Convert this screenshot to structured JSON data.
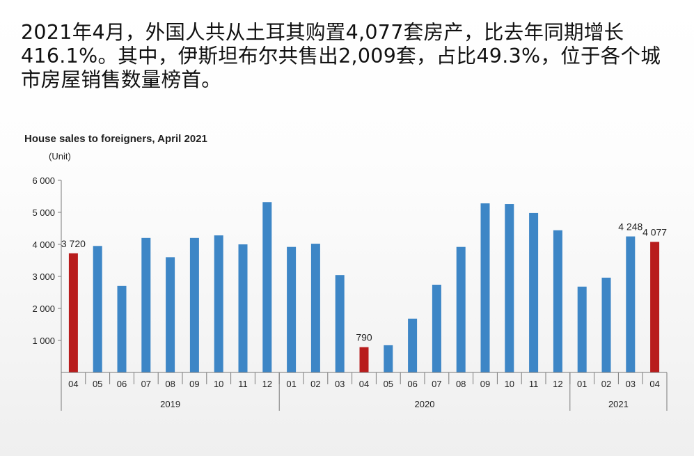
{
  "headline": "2021年4月，外国人共从土耳其购置4,077套房产，比去年同期增长416.1%。其中，伊斯坦布尔共售出2,009套，占比49.3%，位于各个城市房屋销售数量榜首。",
  "colors": {
    "normal": "#3d86c6",
    "highlight": "#b81c1c",
    "axis": "#7a7a7a"
  },
  "chart_data": {
    "type": "bar",
    "title": "House sales to foreigners, April 2021",
    "ylabel": "(Unit)",
    "ylim": [
      0,
      6000
    ],
    "yticks": [
      1000,
      2000,
      3000,
      4000,
      5000,
      6000
    ],
    "ytick_labels": [
      "1 000",
      "2 000",
      "3 000",
      "4 000",
      "5 000",
      "6 000"
    ],
    "grid": false,
    "categories": [
      "04",
      "05",
      "06",
      "07",
      "08",
      "09",
      "10",
      "11",
      "12",
      "01",
      "02",
      "03",
      "04",
      "05",
      "06",
      "07",
      "08",
      "09",
      "10",
      "11",
      "12",
      "01",
      "02",
      "03",
      "04"
    ],
    "values": [
      3720,
      3950,
      2700,
      4200,
      3600,
      4200,
      4280,
      4000,
      5320,
      3920,
      4020,
      3040,
      790,
      850,
      1680,
      2740,
      3920,
      5280,
      5260,
      4980,
      4440,
      2680,
      2960,
      4248,
      4077
    ],
    "highlight_index": [
      0,
      12,
      24
    ],
    "data_labels": [
      {
        "index": 0,
        "text": "3 720"
      },
      {
        "index": 12,
        "text": "790"
      },
      {
        "index": 23,
        "text": "4 248"
      },
      {
        "index": 24,
        "text": "4 077"
      }
    ],
    "year_groups": [
      {
        "label": "2019",
        "start": 0,
        "end": 8
      },
      {
        "label": "2020",
        "start": 9,
        "end": 20
      },
      {
        "label": "2021",
        "start": 21,
        "end": 24
      }
    ]
  }
}
